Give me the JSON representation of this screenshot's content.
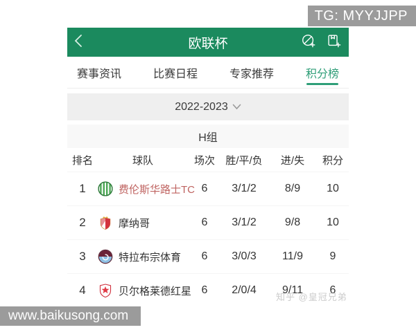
{
  "watermarks": {
    "tg_banner": "TG: MYYJJPP",
    "site_banner": "www.baikusong.com",
    "zhihu_credit": "知乎 @皇冠兄弟"
  },
  "header": {
    "title": "欧联杯"
  },
  "tabs": [
    {
      "label": "赛事资讯",
      "active": false
    },
    {
      "label": "比赛日程",
      "active": false
    },
    {
      "label": "专家推荐",
      "active": false
    },
    {
      "label": "积分榜",
      "active": true
    }
  ],
  "season": {
    "value": "2022-2023"
  },
  "group": {
    "label": "H组"
  },
  "table": {
    "headers": [
      "排名",
      "球队",
      "场次",
      "胜/平/负",
      "进/失",
      "积分"
    ],
    "rows": [
      {
        "rank": "1",
        "team": "费伦斯华路士TC",
        "played": "6",
        "wdl": "3/1/2",
        "goals": "8/9",
        "points": "10",
        "highlight": true,
        "logo": "ferencvaros"
      },
      {
        "rank": "2",
        "team": "摩纳哥",
        "played": "6",
        "wdl": "3/1/2",
        "goals": "9/8",
        "points": "10",
        "highlight": false,
        "logo": "monaco"
      },
      {
        "rank": "3",
        "team": "特拉布宗体育",
        "played": "6",
        "wdl": "3/0/3",
        "goals": "11/9",
        "points": "9",
        "highlight": false,
        "logo": "trabzonspor"
      },
      {
        "rank": "4",
        "team": "贝尔格莱德红星",
        "played": "6",
        "wdl": "2/0/4",
        "goals": "9/11",
        "points": "6",
        "highlight": false,
        "logo": "redstar"
      }
    ]
  },
  "colors": {
    "header_green": "#1b8a5e",
    "active_tab_green": "#2f9e78",
    "highlight_team_text": "#bf6360",
    "watermark_gray": "#9b9b9b"
  }
}
